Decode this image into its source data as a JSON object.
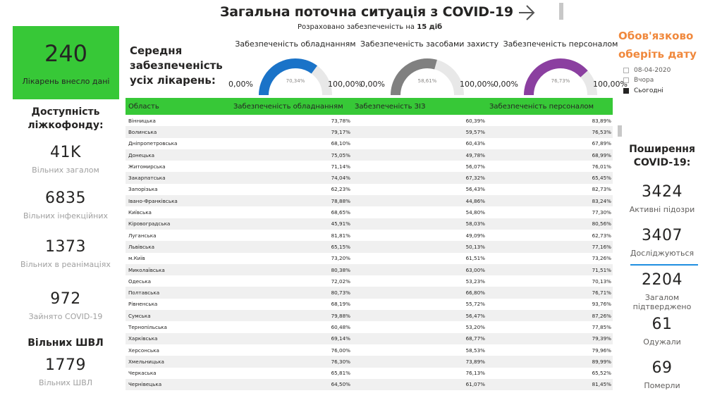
{
  "header": {
    "title": "Загальна поточна ситуація з COVID-19",
    "subtitle_prefix": "Розраховано забезпеченість на",
    "subtitle_bold": "15 діб"
  },
  "hospitals_card": {
    "value": "240",
    "label": "Лікарень внесло дані"
  },
  "beds": {
    "heading": "Доступність ліжкофонду:",
    "items": [
      {
        "value": "41K",
        "label": "Вільних загалом"
      },
      {
        "value": "6835",
        "label": "Вільних інфекційних"
      },
      {
        "value": "1373",
        "label": "Вільних в реанімаціях"
      },
      {
        "value": "972",
        "label": "Зайнято COVID-19"
      }
    ],
    "ventilators_heading": "Вільних ШВЛ",
    "ventilators": {
      "value": "1779",
      "label": "Вільних ШВЛ"
    }
  },
  "avg_title": "Середня забезпеченість усіх лікарень:",
  "gauges": [
    {
      "title": "Забезпеченість обладнанням",
      "min": "0,00%",
      "max": "100,00%",
      "value_label": "70,34%",
      "value": 0.7034,
      "color": "#1a73c8"
    },
    {
      "title": "Забезпеченість засобами захисту",
      "min": "0,00%",
      "max": "100,00%",
      "value_label": "58,61%",
      "value": 0.5861,
      "color": "#808080"
    },
    {
      "title": "Забезпеченість персоналом",
      "min": "0,00%",
      "max": "100,00%",
      "value_label": "76,73%",
      "value": 0.7673,
      "color": "#8b3fa0"
    }
  ],
  "table": {
    "columns": [
      "Область",
      "Забезпеченість обладнанням",
      "Забезпеченість ЗІЗ",
      "Забезпеченість персоналом"
    ],
    "rows": [
      [
        "Вінницька",
        "73,78%",
        "60,39%",
        "83,89%"
      ],
      [
        "Волинська",
        "79,17%",
        "59,57%",
        "76,53%"
      ],
      [
        "Дніпропетровська",
        "68,10%",
        "60,43%",
        "67,89%"
      ],
      [
        "Донецька",
        "75,05%",
        "49,78%",
        "68,99%"
      ],
      [
        "Житомирська",
        "71,14%",
        "56,07%",
        "76,01%"
      ],
      [
        "Закарпатська",
        "74,04%",
        "67,32%",
        "65,45%"
      ],
      [
        "Запорізька",
        "62,23%",
        "56,43%",
        "82,73%"
      ],
      [
        "Івано-Франківська",
        "78,88%",
        "44,86%",
        "83,24%"
      ],
      [
        "Київська",
        "68,65%",
        "54,80%",
        "77,30%"
      ],
      [
        "Кіровоградська",
        "45,91%",
        "58,03%",
        "80,56%"
      ],
      [
        "Луганська",
        "81,81%",
        "49,09%",
        "62,73%"
      ],
      [
        "Львівська",
        "65,15%",
        "50,13%",
        "77,16%"
      ],
      [
        "м.Київ",
        "73,20%",
        "61,51%",
        "73,26%"
      ],
      [
        "Миколаївська",
        "80,38%",
        "63,00%",
        "71,51%"
      ],
      [
        "Одеська",
        "72,02%",
        "53,23%",
        "70,13%"
      ],
      [
        "Полтавська",
        "80,73%",
        "66,80%",
        "76,71%"
      ],
      [
        "Рівненська",
        "68,19%",
        "55,72%",
        "93,76%"
      ],
      [
        "Сумська",
        "79,88%",
        "56,47%",
        "87,26%"
      ],
      [
        "Тернопільська",
        "60,48%",
        "53,20%",
        "77,85%"
      ],
      [
        "Харківська",
        "69,14%",
        "68,77%",
        "79,39%"
      ],
      [
        "Херсонська",
        "76,00%",
        "58,53%",
        "79,96%"
      ],
      [
        "Хмельницька",
        "76,30%",
        "73,89%",
        "89,99%"
      ],
      [
        "Черкаська",
        "65,81%",
        "76,13%",
        "65,52%"
      ],
      [
        "Чернівецька",
        "64,50%",
        "61,07%",
        "81,45%"
      ]
    ]
  },
  "date_filter": {
    "heading_line1": "Обов'язково",
    "heading_line2": "оберіть дату",
    "options": [
      {
        "label": "08-04-2020",
        "checked": false
      },
      {
        "label": "Вчора",
        "checked": false
      },
      {
        "label": "Сьогодні",
        "checked": true
      }
    ]
  },
  "spread": {
    "heading": "Поширення COVID-19:",
    "items": [
      {
        "value": "3424",
        "label": "Активні підозри"
      },
      {
        "value": "3407",
        "label": "Досліджуються"
      },
      {
        "value": "2204",
        "label": "Загалом підтверджено"
      },
      {
        "value": "61",
        "label": "Одужали"
      },
      {
        "value": "69",
        "label": "Померли"
      }
    ]
  },
  "icons": {
    "next": "arrow-right-icon"
  }
}
